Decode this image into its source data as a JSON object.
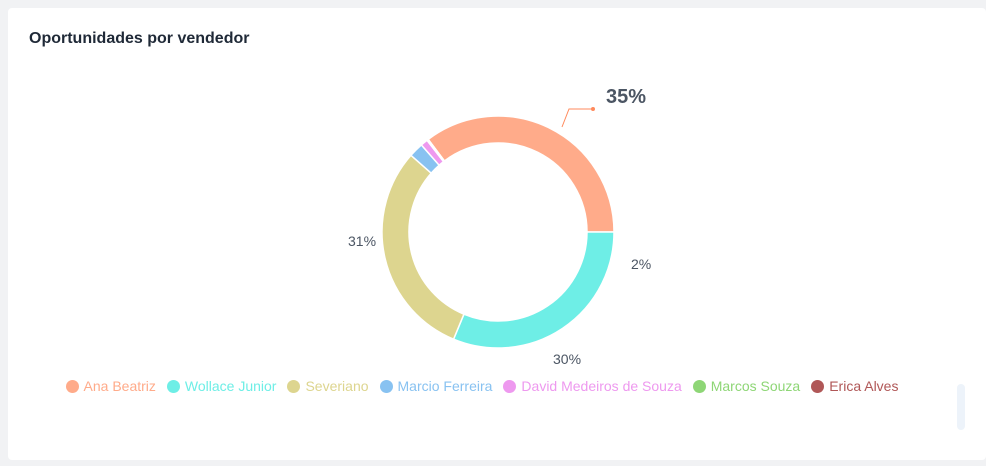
{
  "card": {
    "title": "Oportunidades por vendedor"
  },
  "chart_data": {
    "type": "pie",
    "title": "Oportunidades por vendedor",
    "donut": true,
    "legend_position": "bottom",
    "series": [
      {
        "name": "Ana Beatriz",
        "value": 35,
        "color": "#ffab8a"
      },
      {
        "name": "Wollace Junior",
        "value": 31,
        "color": "#6eeee6"
      },
      {
        "name": "Severiano",
        "value": 30,
        "color": "#ddd58f"
      },
      {
        "name": "Marcio Ferreira",
        "value": 2,
        "color": "#88c2f1"
      },
      {
        "name": "David Medeiros de Souza",
        "value": 1,
        "color": "#ee99ef"
      },
      {
        "name": "Marcos Souza",
        "value": 0.1,
        "color": "#8ed676"
      },
      {
        "name": "Erica Alves",
        "value": 0.1,
        "color": "#b05757"
      }
    ],
    "data_labels": [
      {
        "series": "Ana Beatriz",
        "text": "35%"
      },
      {
        "series": "Wollace Junior",
        "text": "31%"
      },
      {
        "series": "Severiano",
        "text": "30%"
      },
      {
        "series": "Marcio Ferreira",
        "text": "2%"
      }
    ]
  }
}
